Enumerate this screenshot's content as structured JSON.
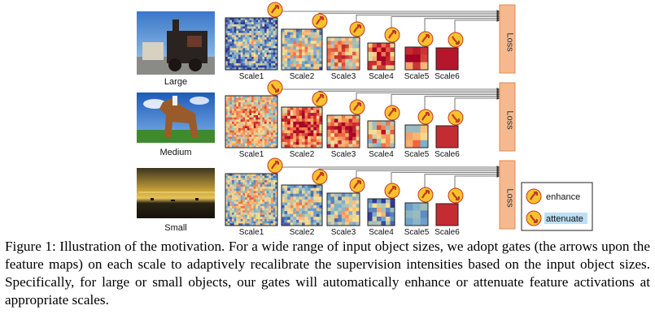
{
  "rows": [
    {
      "label": "Large",
      "gates": [
        "enhance",
        "enhance",
        "enhance",
        "enhance",
        "enhance",
        "attenuate"
      ]
    },
    {
      "label": "Medium",
      "gates": [
        "attenuate",
        "enhance",
        "enhance",
        "enhance",
        "enhance",
        "attenuate"
      ]
    },
    {
      "label": "Small",
      "gates": [
        "enhance",
        "enhance",
        "enhance",
        "enhance",
        "enhance",
        "attenuate"
      ]
    }
  ],
  "scale_labels": [
    "Scale1",
    "Scale2",
    "Scale3",
    "Scale4",
    "Scale5",
    "Scale6"
  ],
  "grid_sizes": [
    24,
    14,
    9,
    6,
    3,
    1
  ],
  "loss_label": "Loss",
  "legend": {
    "enhance": "enhance",
    "attenuate": "attenuate"
  },
  "caption": "Figure 1: Illustration of the motivation. For a wide range of input object sizes, we adopt gates (the arrows upon the feature maps) on each scale to adaptively recalibrate the supervision intensities based on the input object sizes. Specifically, for large or small objects, our gates will automatically enhance or attenuate feature activations at appropriate scales.",
  "colors": {
    "loss_fill": "#f6b98e",
    "loss_stroke": "#e08a52",
    "gate_fill": "#f7c22b",
    "gate_arrow": "#c0392b",
    "legend_highlight": "#bcdff5"
  }
}
